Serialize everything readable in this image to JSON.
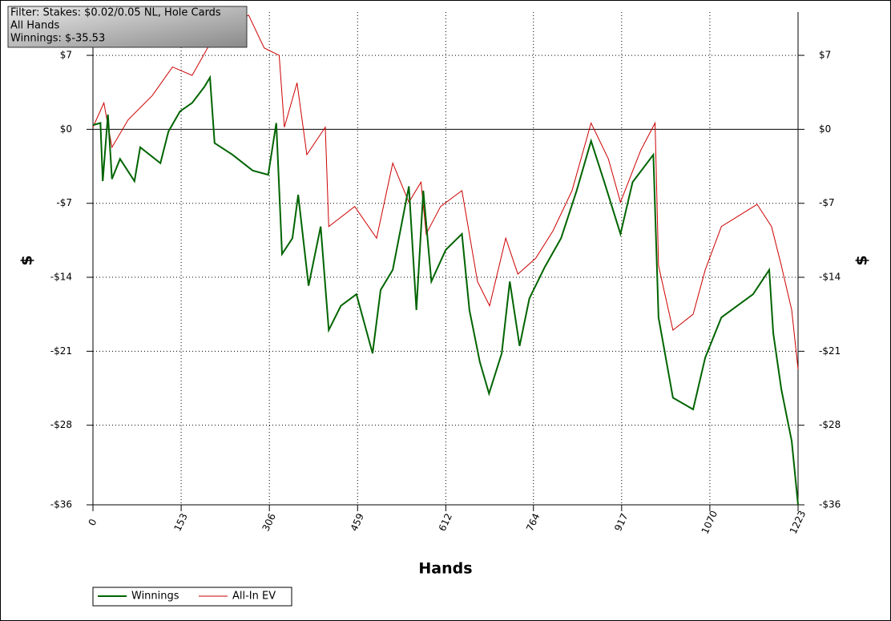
{
  "chart_data": {
    "type": "line",
    "filter_text": [
      "Filter: Stakes: $0.02/0.05 NL, Hole Cards",
      "All Hands",
      "Winnings: $-35.53"
    ],
    "xlabel": "Hands",
    "ylabel": "$",
    "y2label": "$",
    "xlim": [
      0,
      1223
    ],
    "xticks": [
      0,
      153,
      306,
      459,
      612,
      764,
      917,
      1070,
      1223
    ],
    "ylim": [
      -35.53,
      11.1
    ],
    "yticks": [
      {
        "value": 7,
        "label": "$7"
      },
      {
        "value": 0,
        "label": "$0"
      },
      {
        "value": -7,
        "label": "-$7"
      },
      {
        "value": -14,
        "label": "-$14"
      },
      {
        "value": -21,
        "label": "-$21"
      },
      {
        "value": -28,
        "label": "-$28"
      },
      {
        "value": -35.53,
        "label": "-$36"
      }
    ],
    "grid": true,
    "legend": "bottom-left",
    "series": [
      {
        "name": "Winnings",
        "color": "#006400",
        "x": [
          0,
          13,
          17,
          26,
          33,
          47,
          72,
          82,
          117,
          131,
          151,
          172,
          193,
          203,
          211,
          242,
          277,
          304,
          318,
          328,
          346,
          356,
          374,
          395,
          409,
          430,
          457,
          485,
          499,
          520,
          548,
          561,
          573,
          587,
          612,
          640,
          653,
          671,
          687,
          709,
          723,
          740,
          757,
          784,
          812,
          839,
          864,
          887,
          915,
          936,
          972,
          981,
          1006,
          1041,
          1062,
          1090,
          1145,
          1173,
          1180,
          1194,
          1212,
          1223
        ],
        "values": [
          0.4,
          0.6,
          -4.9,
          1.4,
          -4.7,
          -2.8,
          -4.9,
          -1.7,
          -3.2,
          -0.2,
          1.7,
          2.5,
          4,
          4.9,
          -1.3,
          -2.4,
          -3.9,
          -4.3,
          0.6,
          -11.8,
          -10.3,
          -6.2,
          -14.8,
          -9.2,
          -19,
          -16.7,
          -15.6,
          -21.2,
          -15.2,
          -13.3,
          -5.4,
          -17.1,
          -5.8,
          -14.4,
          -11.4,
          -9.9,
          -17.1,
          -22,
          -25,
          -21.2,
          -14.4,
          -20.5,
          -16,
          -13,
          -10.3,
          -5.8,
          -1.1,
          -5,
          -9.9,
          -5,
          -2.4,
          -17.8,
          -25.4,
          -26.5,
          -21.6,
          -17.8,
          -15.6,
          -13.3,
          -19.3,
          -24.6,
          -29.5,
          -35.53
        ]
      },
      {
        "name": "All-In EV",
        "color": "#cc0000",
        "x": [
          0,
          19,
          33,
          61,
          103,
          138,
          172,
          203,
          228,
          270,
          297,
          323,
          332,
          354,
          371,
          403,
          409,
          454,
          492,
          520,
          548,
          569,
          578,
          603,
          640,
          667,
          688,
          716,
          737,
          768,
          798,
          831,
          864,
          894,
          915,
          950,
          975,
          981,
          1006,
          1041,
          1062,
          1090,
          1152,
          1177,
          1194,
          1212,
          1223
        ],
        "values": [
          0.2,
          2.5,
          -1.7,
          0.9,
          3.2,
          5.9,
          5.1,
          8.1,
          9.6,
          10.8,
          7.7,
          7,
          0.2,
          4.4,
          -2.4,
          0.2,
          -9.2,
          -7.3,
          -10.3,
          -3.2,
          -6.9,
          -5,
          -9.9,
          -7.3,
          -5.8,
          -14.4,
          -16.7,
          -10.3,
          -13.7,
          -12.2,
          -9.6,
          -5.8,
          0.6,
          -2.8,
          -6.9,
          -2,
          0.6,
          -12.9,
          -19,
          -17.5,
          -13.3,
          -9.2,
          -7.1,
          -9.2,
          -12.9,
          -17.1,
          -22.7
        ]
      }
    ]
  }
}
